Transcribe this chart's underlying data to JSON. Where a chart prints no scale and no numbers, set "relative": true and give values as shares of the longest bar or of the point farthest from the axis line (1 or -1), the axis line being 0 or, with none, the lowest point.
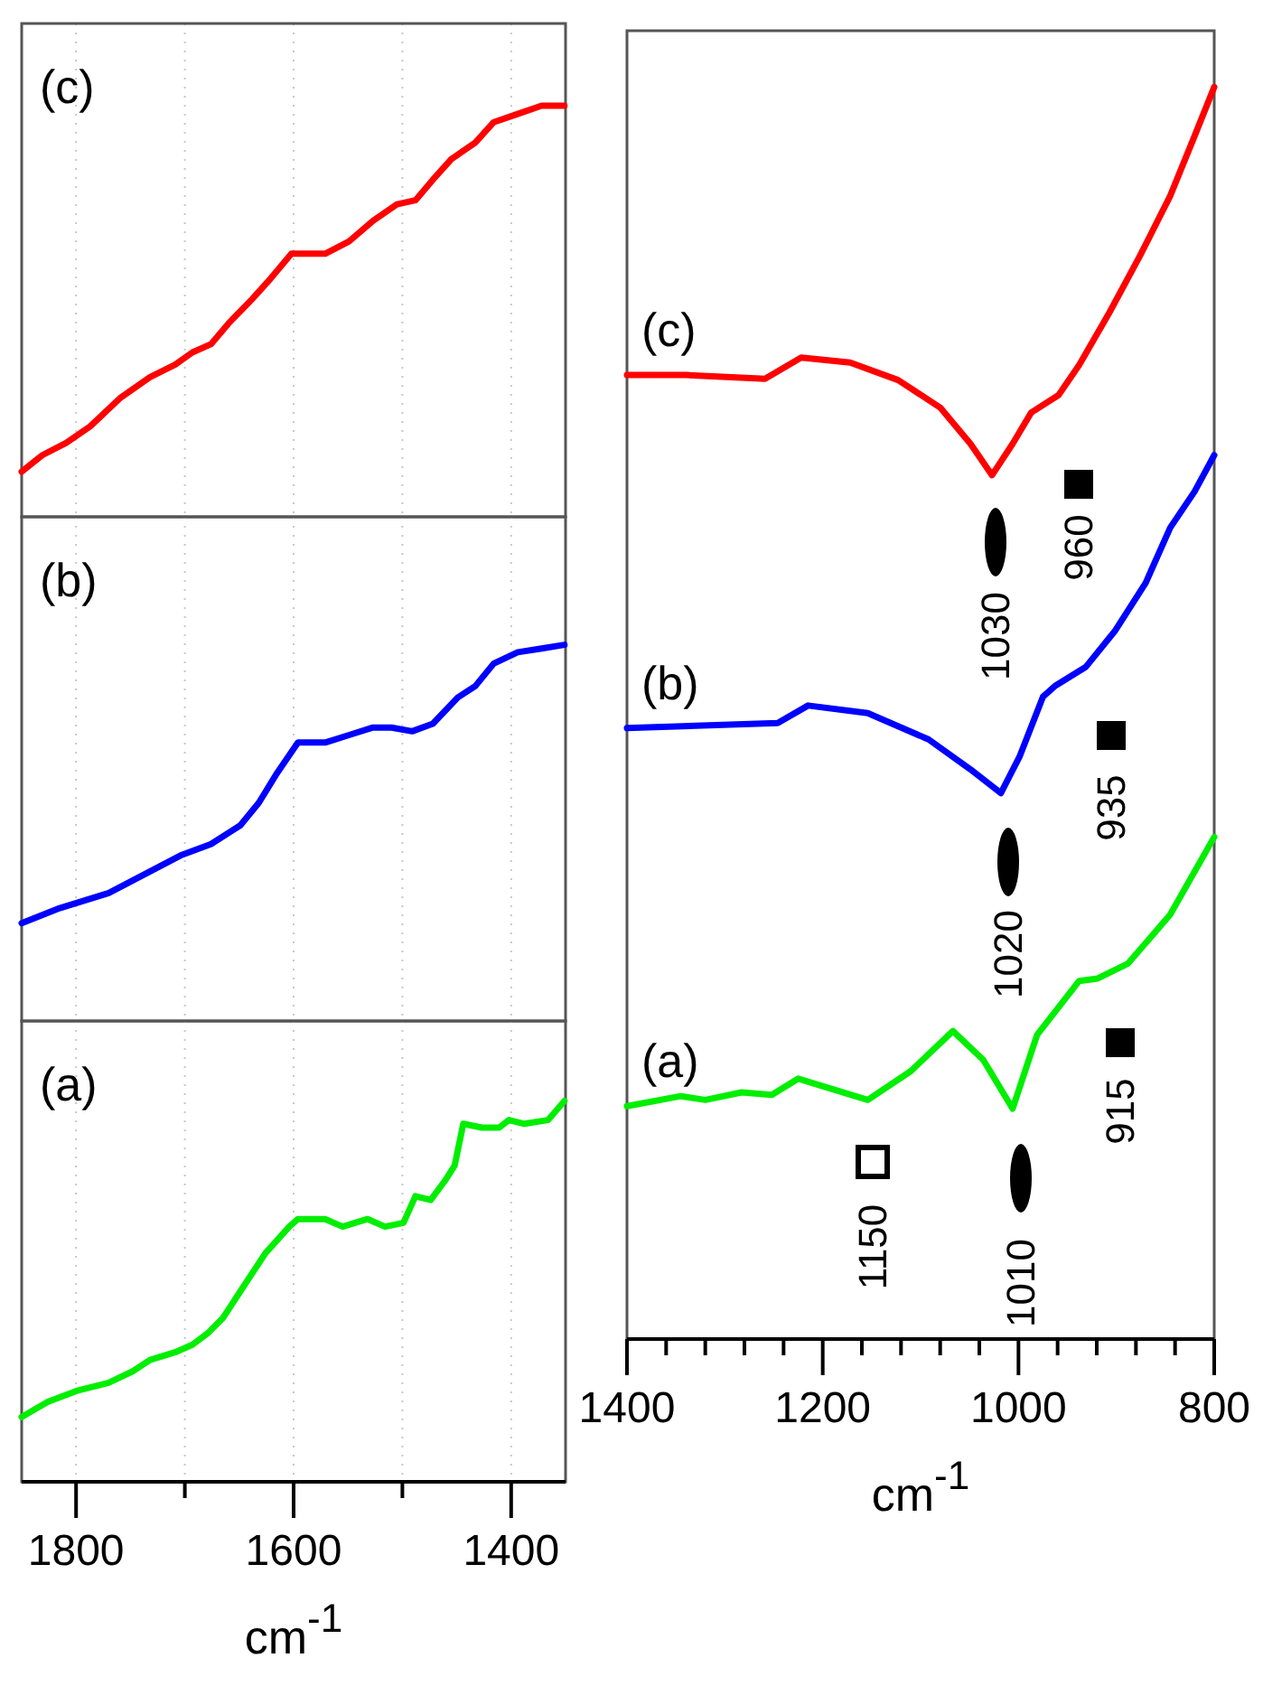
{
  "chart_data": [
    {
      "type": "line",
      "xlim": [
        1850,
        1350
      ],
      "xticks": [
        1800,
        {
          "value": 1700,
          "label": null
        },
        1600,
        {
          "value": 1500,
          "label": null
        },
        1400
      ],
      "grid": "x",
      "tick_labels": false,
      "relative": true,
      "series": [
        {
          "name": "(c)",
          "color": "#ff0000",
          "x": [
            1850,
            1831,
            1809,
            1787,
            1759,
            1732,
            1709,
            1693,
            1676,
            1660,
            1638,
            1621,
            1602,
            1588,
            1571,
            1549,
            1527,
            1505,
            1488,
            1472,
            1455,
            1433,
            1416,
            1394,
            1372,
            1351
          ],
          "values": [
            0.11,
            0.15,
            0.18,
            0.22,
            0.29,
            0.34,
            0.37,
            0.4,
            0.42,
            0.47,
            0.53,
            0.58,
            0.64,
            0.64,
            0.64,
            0.67,
            0.72,
            0.76,
            0.77,
            0.82,
            0.87,
            0.91,
            0.96,
            0.98,
            1,
            1
          ]
        }
      ]
    },
    {
      "type": "line",
      "xlim": [
        1850,
        1350
      ],
      "xticks": [
        1800,
        {
          "value": 1700,
          "label": null
        },
        1600,
        {
          "value": 1500,
          "label": null
        },
        1400
      ],
      "grid": "x",
      "tick_labels": false,
      "relative": true,
      "series": [
        {
          "name": "(b)",
          "color": "#0000ff",
          "x": [
            1850,
            1815,
            1770,
            1737,
            1704,
            1676,
            1649,
            1632,
            1615,
            1596,
            1571,
            1549,
            1527,
            1510,
            1491,
            1472,
            1449,
            1433,
            1416,
            1394,
            1372,
            1351
          ],
          "values": [
            0.26,
            0.3,
            0.34,
            0.39,
            0.44,
            0.47,
            0.52,
            0.58,
            0.66,
            0.74,
            0.74,
            0.76,
            0.78,
            0.78,
            0.77,
            0.79,
            0.86,
            0.89,
            0.95,
            0.98,
            0.99,
            1
          ]
        }
      ]
    },
    {
      "type": "line",
      "xlim": [
        1850,
        1350
      ],
      "xticks": [
        1800,
        {
          "value": 1700,
          "label": null
        },
        1600,
        {
          "value": 1500,
          "label": null
        },
        1400
      ],
      "grid": "x",
      "xlabel": "cm$^{-1}$",
      "tick_labels": "x",
      "relative": true,
      "series": [
        {
          "name": "(a)",
          "color": "#00ee00",
          "x": [
            1850,
            1826,
            1798,
            1770,
            1748,
            1732,
            1709,
            1693,
            1679,
            1665,
            1649,
            1626,
            1604,
            1596,
            1571,
            1555,
            1532,
            1516,
            1499,
            1488,
            1474,
            1461,
            1452,
            1444,
            1427,
            1411,
            1402,
            1388,
            1366,
            1351
          ],
          "values": [
            0.17,
            0.21,
            0.24,
            0.26,
            0.29,
            0.32,
            0.34,
            0.36,
            0.39,
            0.43,
            0.5,
            0.6,
            0.67,
            0.69,
            0.69,
            0.67,
            0.69,
            0.67,
            0.68,
            0.75,
            0.74,
            0.79,
            0.83,
            0.94,
            0.93,
            0.93,
            0.95,
            0.94,
            0.95,
            1
          ]
        }
      ]
    },
    {
      "type": "line",
      "xlim": [
        1400,
        800
      ],
      "xticks": [
        1400,
        {
          "value": 1360,
          "label": null
        },
        {
          "value": 1320,
          "label": null
        },
        {
          "value": 1280,
          "label": null
        },
        {
          "value": 1240,
          "label": null
        },
        1200,
        {
          "value": 1160,
          "label": null
        },
        {
          "value": 1120,
          "label": null
        },
        {
          "value": 1080,
          "label": null
        },
        {
          "value": 1040,
          "label": null
        },
        1000,
        {
          "value": 960,
          "label": null
        },
        {
          "value": 920,
          "label": null
        },
        {
          "value": 880,
          "label": null
        },
        {
          "value": 840,
          "label": null
        },
        800
      ],
      "xlabel": "cm$^{-1}$",
      "tick_labels": "x",
      "relative": true,
      "series": [
        {
          "name": "(c)",
          "color": "#ff0000",
          "x": [
            1400,
            1339,
            1259,
            1222,
            1172,
            1123,
            1080,
            1049,
            1027,
            1006,
            987,
            959,
            938,
            907,
            876,
            845,
            820,
            800
          ],
          "values": [
            0.77,
            0.77,
            0.767,
            0.784,
            0.78,
            0.766,
            0.744,
            0.715,
            0.69,
            0.715,
            0.74,
            0.754,
            0.778,
            0.82,
            0.865,
            0.913,
            0.961,
            1
          ]
        },
        {
          "name": "(b)",
          "color": "#0000ff",
          "x": [
            1400,
            1246,
            1215,
            1154,
            1092,
            1049,
            1018,
            999,
            975,
            962,
            931,
            901,
            870,
            845,
            820,
            800
          ],
          "values": [
            0.488,
            0.492,
            0.506,
            0.5,
            0.479,
            0.455,
            0.436,
            0.465,
            0.513,
            0.522,
            0.537,
            0.566,
            0.604,
            0.648,
            0.677,
            0.706
          ]
        },
        {
          "name": "(a)",
          "color": "#00ee00",
          "x": [
            1400,
            1345,
            1320,
            1283,
            1252,
            1225,
            1154,
            1110,
            1067,
            1036,
            1006,
            981,
            938,
            919,
            888,
            845,
            800
          ],
          "values": [
            0.186,
            0.194,
            0.191,
            0.197,
            0.195,
            0.208,
            0.191,
            0.214,
            0.246,
            0.223,
            0.184,
            0.243,
            0.286,
            0.288,
            0.3,
            0.339,
            0.401
          ]
        }
      ],
      "annotations": [
        "960",
        "1030",
        "935",
        "1020",
        "915",
        "1150",
        "1010"
      ]
    }
  ]
}
